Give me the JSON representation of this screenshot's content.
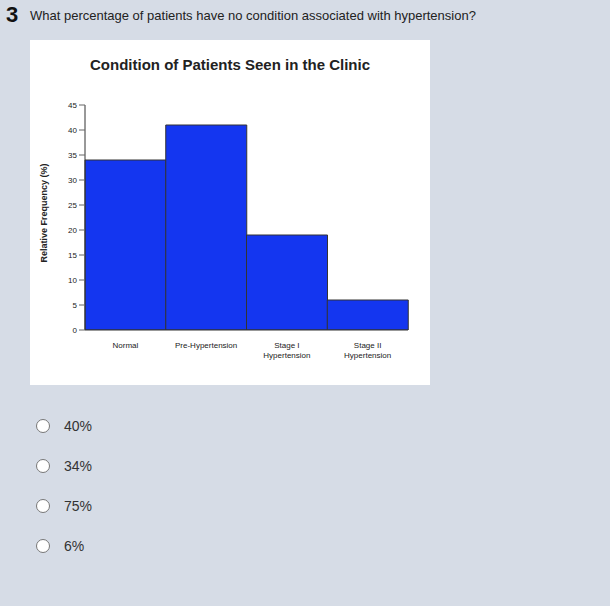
{
  "question": {
    "number": "3",
    "text": "What percentage of patients have no condition associated with hypertension?"
  },
  "options": [
    "40%",
    "34%",
    "75%",
    "6%"
  ],
  "chart_data": {
    "type": "bar",
    "title": "Condition of Patients Seen in the Clinic",
    "y_label": "Relative Frequency (%)",
    "categories": [
      "Normal",
      "Pre-Hypertension",
      "Stage I Hypertension",
      "Stage II Hypertension"
    ],
    "values": [
      34,
      41,
      19,
      6
    ],
    "color": "#1436f0",
    "ylim": [
      0,
      45
    ],
    "yticks": [
      0,
      5,
      10,
      15,
      20,
      25,
      30,
      35,
      40,
      45
    ],
    "grid": false
  }
}
